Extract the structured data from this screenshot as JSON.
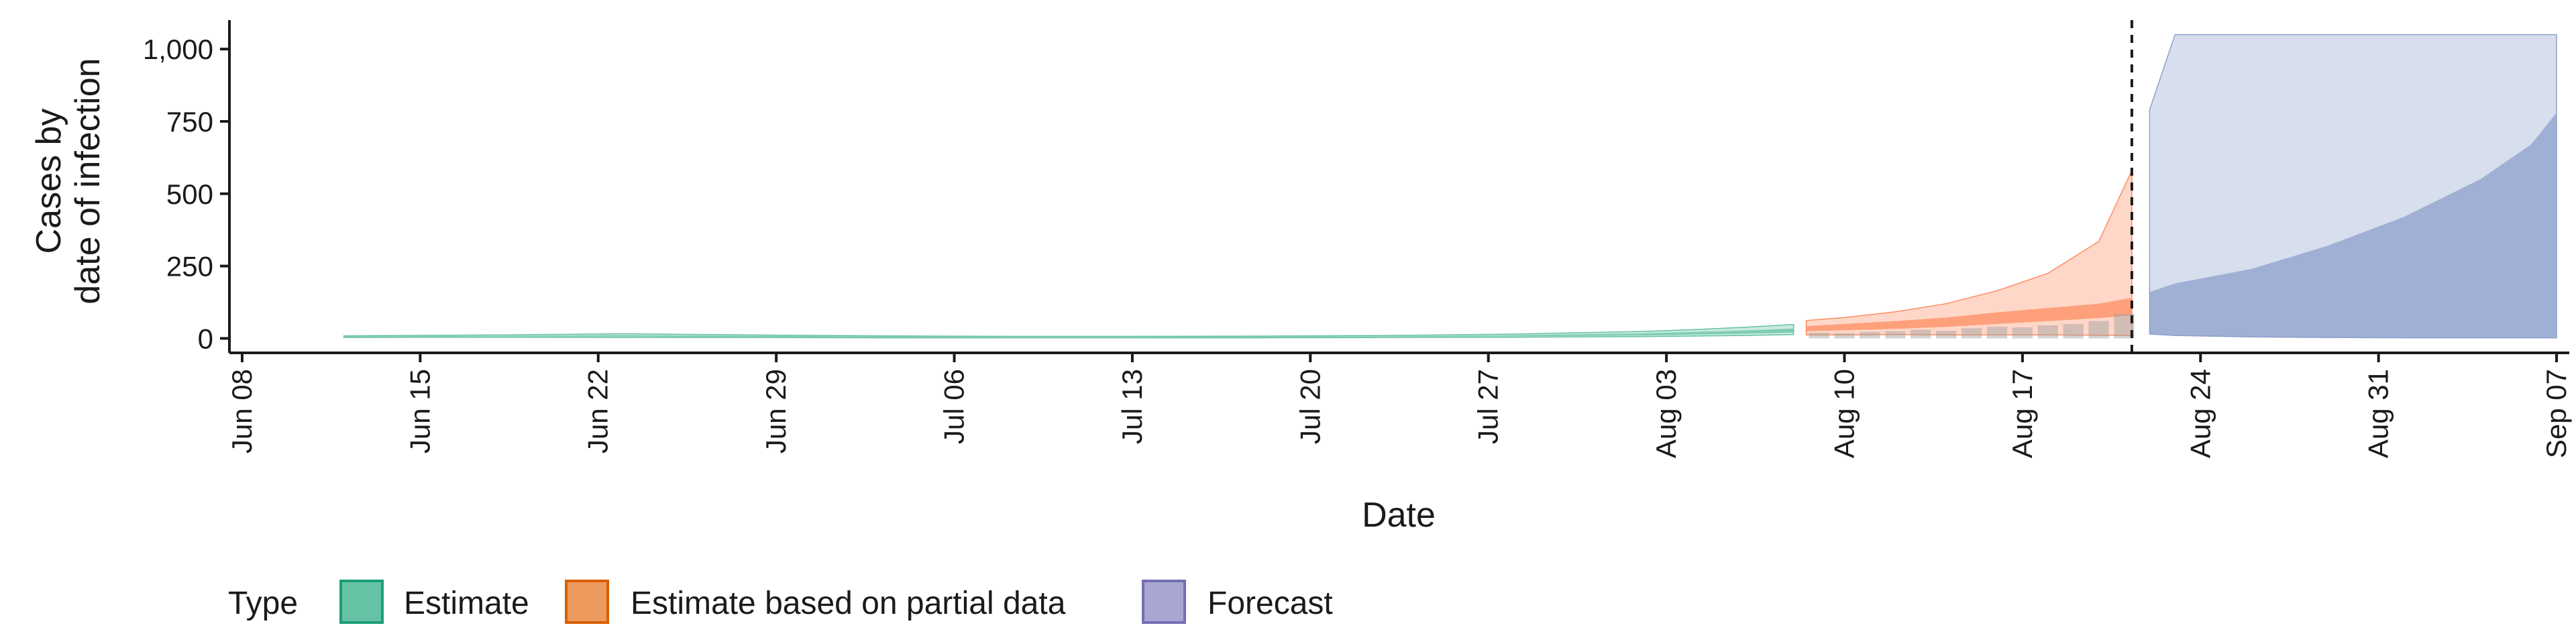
{
  "chart_data": {
    "type": "area",
    "xlabel": "Date",
    "ylabel": [
      "Cases by",
      "date of infection"
    ],
    "x_ticks": [
      "Jun 08",
      "Jun 15",
      "Jun 22",
      "Jun 29",
      "Jul 06",
      "Jul 13",
      "Jul 20",
      "Jul 27",
      "Aug 03",
      "Aug 10",
      "Aug 17",
      "Aug 24",
      "Aug 31",
      "Sep 07"
    ],
    "y_ticks": [
      "0",
      "250",
      "500",
      "750",
      "1,000"
    ],
    "ylim": [
      -50,
      1100
    ],
    "xlim_days_from_jun08": [
      -0.5,
      91.5
    ],
    "vertical_line_date": "Aug 21",
    "legend": {
      "title": "Type",
      "position": "bottom",
      "items": [
        {
          "label": "Estimate",
          "color": "#66c2a5"
        },
        {
          "label": "Estimate based on partial data",
          "color": "#fc8d62"
        },
        {
          "label": "Forecast",
          "color": "#8da0cb"
        }
      ]
    },
    "series": [
      {
        "name": "Estimate",
        "color": "#66c2a5",
        "x": [
          4,
          10,
          15,
          20,
          25,
          30,
          35,
          40,
          45,
          50,
          55,
          57,
          59,
          61
        ],
        "outer_lower": [
          3,
          4,
          3,
          3,
          2,
          2,
          2,
          2,
          3,
          4,
          6,
          8,
          10,
          13
        ],
        "outer_upper": [
          9,
          12,
          16,
          12,
          9,
          7,
          7,
          8,
          10,
          15,
          24,
          30,
          38,
          48
        ],
        "inner_lower": [
          5,
          6,
          6,
          5,
          4,
          4,
          4,
          4,
          5,
          7,
          10,
          13,
          16,
          20
        ],
        "inner_upper": [
          7,
          9,
          11,
          9,
          7,
          5,
          5,
          6,
          7,
          11,
          17,
          22,
          27,
          34
        ]
      },
      {
        "name": "Estimate based on partial data",
        "color": "#fc8d62",
        "x": [
          61.5,
          63,
          65,
          67,
          69,
          71,
          73,
          74.3
        ],
        "outer_lower": [
          12,
          12,
          13,
          12,
          12,
          12,
          11,
          10
        ],
        "outer_upper": [
          62,
          72,
          92,
          120,
          165,
          225,
          335,
          580
        ],
        "inner_lower": [
          25,
          28,
          33,
          40,
          50,
          60,
          70,
          80
        ],
        "inner_upper": [
          42,
          50,
          60,
          72,
          90,
          105,
          120,
          140
        ]
      },
      {
        "name": "Forecast",
        "color": "#8da0cb",
        "x": [
          75,
          76,
          79,
          82,
          85,
          88,
          90,
          91
        ],
        "outer_lower": [
          15,
          10,
          5,
          3,
          2,
          2,
          2,
          2
        ],
        "outer_upper": [
          790,
          1050,
          1050,
          1050,
          1050,
          1050,
          1050,
          1050
        ],
        "inner_lower": [
          15,
          10,
          5,
          3,
          2,
          2,
          2,
          2
        ],
        "inner_upper": [
          160,
          190,
          240,
          320,
          420,
          550,
          670,
          780
        ]
      }
    ],
    "reported_cases": {
      "x": [
        62,
        63,
        64,
        65,
        66,
        67,
        68,
        69,
        70,
        71,
        72,
        73,
        74
      ],
      "y": [
        20,
        18,
        22,
        25,
        30,
        26,
        35,
        40,
        38,
        45,
        50,
        60,
        85
      ]
    }
  }
}
